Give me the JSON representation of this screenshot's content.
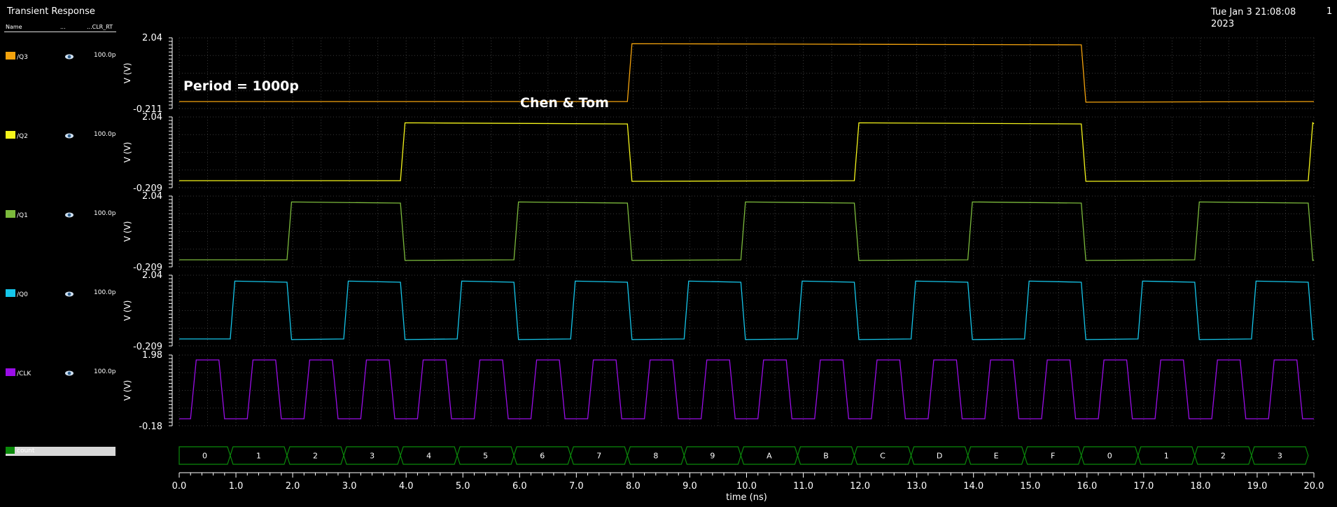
{
  "window": {
    "title": "Transient Response",
    "date": "Tue Jan 3 21:08:08\n2023",
    "page": "1"
  },
  "legend_header": {
    "name": "Name",
    "mid": "...",
    "right": "...CLR_RT"
  },
  "legend": [
    {
      "name": "/Q3",
      "value": "100.0p",
      "color": "#f4a30d"
    },
    {
      "name": "/Q2",
      "value": "100.0p",
      "color": "#f5f51b"
    },
    {
      "name": "/Q1",
      "value": "100.0p",
      "color": "#7cba3c"
    },
    {
      "name": "/Q0",
      "value": "100.0p",
      "color": "#15c6ea"
    },
    {
      "name": "/CLK",
      "value": "100.0p",
      "color": "#9a0de8"
    }
  ],
  "count_bus": {
    "name": "count",
    "color": "#0b8a0b"
  },
  "annotations": {
    "period": "Period = 1000p",
    "authors": "Chen & Tom"
  },
  "chart_data": {
    "type": "line",
    "xlabel": "time (ns)",
    "xlim": [
      0.0,
      20.0
    ],
    "xticks": [
      "0.0",
      "1.0",
      "2.0",
      "3.0",
      "4.0",
      "5.0",
      "6.0",
      "7.0",
      "8.0",
      "9.0",
      "10.0",
      "11.0",
      "12.0",
      "13.0",
      "14.0",
      "15.0",
      "16.0",
      "17.0",
      "18.0",
      "19.0",
      "20.0"
    ],
    "grid": true,
    "series": [
      {
        "name": "/Q3",
        "ylabel": "V (V)",
        "ymax_label": "2.04",
        "ymin_label": "-0.211",
        "high": 1.8,
        "low": 0.0,
        "edges": [
          [
            7.9,
            1
          ],
          [
            15.9,
            0
          ]
        ],
        "start": 0
      },
      {
        "name": "/Q2",
        "ylabel": "V (V)",
        "ymax_label": "2.04",
        "ymin_label": "-0.209",
        "high": 1.8,
        "low": 0.0,
        "edges": [
          [
            3.9,
            1
          ],
          [
            7.9,
            0
          ],
          [
            11.9,
            1
          ],
          [
            15.9,
            0
          ],
          [
            19.9,
            1
          ]
        ],
        "start": 0
      },
      {
        "name": "/Q1",
        "ylabel": "V (V)",
        "ymax_label": "2.04",
        "ymin_label": "-0.209",
        "high": 1.8,
        "low": 0.0,
        "edges": [
          [
            1.9,
            1
          ],
          [
            3.9,
            0
          ],
          [
            5.9,
            1
          ],
          [
            7.9,
            0
          ],
          [
            9.9,
            1
          ],
          [
            11.9,
            0
          ],
          [
            13.9,
            1
          ],
          [
            15.9,
            0
          ],
          [
            17.9,
            1
          ],
          [
            19.9,
            0
          ]
        ],
        "start": 0
      },
      {
        "name": "/Q0",
        "ylabel": "V (V)",
        "ymax_label": "2.04",
        "ymin_label": "-0.209",
        "high": 1.8,
        "low": 0.0,
        "edges": [
          [
            0.9,
            1
          ],
          [
            1.9,
            0
          ],
          [
            2.9,
            1
          ],
          [
            3.9,
            0
          ],
          [
            4.9,
            1
          ],
          [
            5.9,
            0
          ],
          [
            6.9,
            1
          ],
          [
            7.9,
            0
          ],
          [
            8.9,
            1
          ],
          [
            9.9,
            0
          ],
          [
            10.9,
            1
          ],
          [
            11.9,
            0
          ],
          [
            12.9,
            1
          ],
          [
            13.9,
            0
          ],
          [
            14.9,
            1
          ],
          [
            15.9,
            0
          ],
          [
            16.9,
            1
          ],
          [
            17.9,
            0
          ],
          [
            18.9,
            1
          ],
          [
            19.9,
            0
          ]
        ],
        "start": 0
      },
      {
        "name": "/CLK",
        "ylabel": "V (V)",
        "ymax_label": "1.98",
        "ymin_label": "-0.18",
        "high": 1.8,
        "low": 0.0,
        "clock": {
          "period": 1.0,
          "first_rise": 0.2,
          "rise": 0.1,
          "high_time": 0.4
        }
      }
    ],
    "bus": {
      "name": "count",
      "transitions": [
        0.9,
        1.9,
        2.9,
        3.9,
        4.9,
        5.9,
        6.9,
        7.9,
        8.9,
        9.9,
        10.9,
        11.9,
        12.9,
        13.9,
        14.9,
        15.9,
        16.9,
        17.9,
        18.9,
        19.9
      ],
      "values": [
        "0",
        "1",
        "2",
        "3",
        "4",
        "5",
        "6",
        "7",
        "8",
        "9",
        "A",
        "B",
        "C",
        "D",
        "E",
        "F",
        "0",
        "1",
        "2",
        "3"
      ]
    }
  }
}
